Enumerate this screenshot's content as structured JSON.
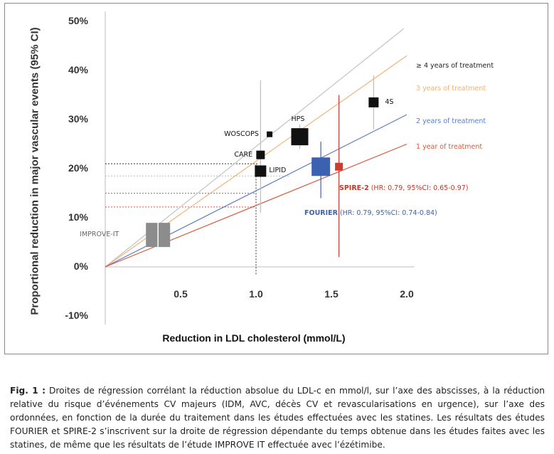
{
  "chart_data": {
    "type": "scatter",
    "ylabel": "Proportional reduction in major vascular events (95% CI)",
    "xlabel": "Reduction in LDL cholesterol (mmol/L)",
    "y_ticks": [
      "50%",
      "40%",
      "30%",
      "20%",
      "10%",
      "0%",
      "-10%"
    ],
    "x_ticks": [
      "0.5",
      "1.0",
      "1.5",
      "2.0"
    ],
    "xlim": [
      0,
      2.0
    ],
    "ylim": [
      -10,
      50
    ],
    "grid": false,
    "regression_lines": [
      {
        "name": "≥ 4 years of treatment",
        "slope": 24.5,
        "color": "#c4c4c4"
      },
      {
        "name": "3 years of treatment",
        "slope": 21.5,
        "color": "#f3b27a"
      },
      {
        "name": "2 years of treatment",
        "slope": 15.5,
        "color": "#5a7ec2"
      },
      {
        "name": "1 year of treatment",
        "slope": 12.5,
        "color": "#d85a3c"
      }
    ],
    "studies": [
      {
        "name": "4S",
        "x": 1.78,
        "y": 33.5,
        "size": 14,
        "color": "#111111",
        "ci": [
          28,
          39
        ]
      },
      {
        "name": "HPS",
        "x": 1.29,
        "y": 26.5,
        "size": 24,
        "color": "#111111",
        "ci": [
          24,
          29
        ]
      },
      {
        "name": "WOSCOPS",
        "x": 1.09,
        "y": 27,
        "size": 8,
        "color": "#111111",
        "ci": null
      },
      {
        "name": "CARE",
        "x": 1.03,
        "y": 22.8,
        "size": 12,
        "color": "#111111",
        "ci": null
      },
      {
        "name": "LIPID",
        "x": 1.03,
        "y": 19.5,
        "size": 16,
        "color": "#111111",
        "ci": [
          11,
          38
        ]
      },
      {
        "name": "IMPROVE-IT",
        "x": 0.35,
        "y": 6.5,
        "size": 34,
        "color": "#8c8c8c",
        "ci": [
          3,
          9.5
        ]
      },
      {
        "name": "",
        "x": 1.43,
        "y": 20.4,
        "size": 26,
        "color": "#3b62b0",
        "ci": [
          14,
          25.5
        ]
      },
      {
        "name": "",
        "x": 1.55,
        "y": 20.4,
        "size": 11,
        "color": "#d13a2e",
        "ci": [
          2,
          35
        ]
      }
    ],
    "results": {
      "spire": {
        "name": "SPIRE-2",
        "detail": "(HR: 0.79, 95%CI: 0.65-0.97)",
        "color": "#c0392b"
      },
      "fourier": {
        "name": "FOURIER",
        "detail": "(HR: 0.79, 95%CI: 0.74-0.84)",
        "color": "#3b62b0"
      }
    },
    "reference_lines": [
      {
        "y": 21,
        "to_x": 1.02,
        "color": "#333333"
      },
      {
        "y": 18.5,
        "to_x": 1.22,
        "color": "#f3b27a"
      },
      {
        "y": 15,
        "to_x": 1.0,
        "color": "#5a7ec2"
      },
      {
        "y": 12.2,
        "to_x": 1.0,
        "color": "#d85a3c"
      },
      {
        "x": 1.0,
        "from_y": -1.5,
        "to_y": 21,
        "color": "#333333"
      }
    ]
  },
  "caption": {
    "label": "Fig. 1 :",
    "text": "Droites de régression corrélant la réduction absolue du LDL-c en mmol/l, sur l’axe des abscisses, à la réduction relative du risque d’événements CV majeurs (IDM, AVC, décès CV et revascularisations en urgence), sur l’axe des ordonnées, en fonction de la durée du traitement dans les études effectuées avec les statines. Les résultats des études FOURIER et SPIRE-2 s’inscrivent sur la droite de régression dépendante du temps obtenue dans les études faites avec les statines, de même que les résultats de l’étude IMPROVE IT effectuée avec l’ézétimibe."
  }
}
